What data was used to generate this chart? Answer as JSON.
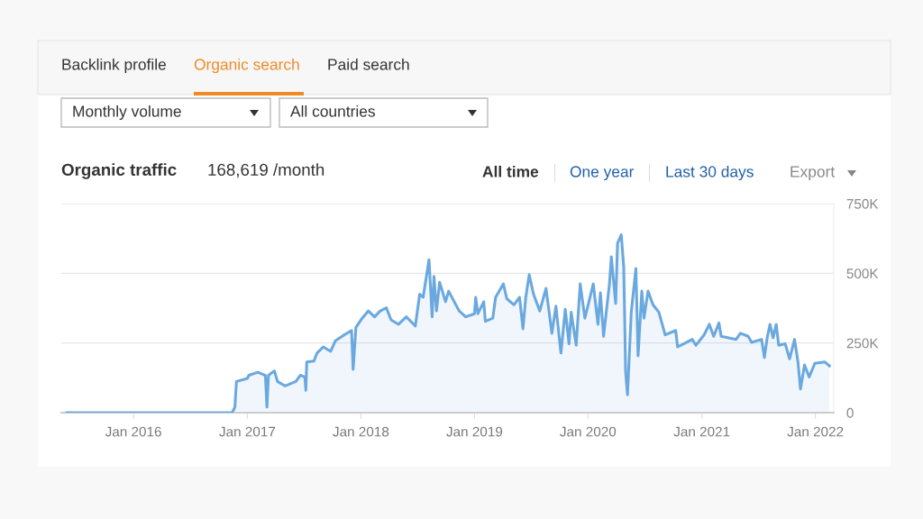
{
  "chart_data": {
    "type": "area",
    "title": "Organic traffic",
    "subtitle": "168,619 /month",
    "annotations": [
      "Backlink profile",
      "Organic search",
      "Paid search",
      "Monthly volume",
      "All countries",
      "All time",
      "One year",
      "Last 30 days",
      "Export"
    ],
    "x": [
      "2015-06-01",
      "2016-11-13",
      "2016-11-22",
      "2016-11-27",
      "2017-01-01",
      "2017-01-06",
      "2017-02-04",
      "2017-02-28",
      "2017-03-05",
      "2017-03-10",
      "2017-03-29",
      "2017-04-08",
      "2017-05-02",
      "2017-06-06",
      "2017-06-20",
      "2017-07-05",
      "2017-07-08",
      "2017-07-11",
      "2017-08-03",
      "2017-08-13",
      "2017-09-02",
      "2017-09-26",
      "2017-10-11",
      "2017-11-08",
      "2017-12-02",
      "2017-12-07",
      "2017-12-16",
      "2018-01-05",
      "2018-01-25",
      "2018-02-14",
      "2018-03-04",
      "2018-03-24",
      "2018-04-08",
      "2018-05-02",
      "2018-05-27",
      "2018-06-25",
      "2018-07-09",
      "2018-07-20",
      "2018-08-08",
      "2018-08-18",
      "2018-08-24",
      "2018-09-01",
      "2018-09-11",
      "2018-09-30",
      "2018-10-10",
      "2018-11-13",
      "2018-12-04",
      "2019-01-01",
      "2019-01-05",
      "2019-01-12",
      "2019-01-31",
      "2019-02-05",
      "2019-03-01",
      "2019-03-10",
      "2019-04-04",
      "2019-04-15",
      "2019-05-08",
      "2019-05-26",
      "2019-06-06",
      "2019-06-15",
      "2019-06-26",
      "2019-07-10",
      "2019-07-30",
      "2019-08-19",
      "2019-09-07",
      "2019-09-20",
      "2019-10-06",
      "2019-10-20",
      "2019-11-01",
      "2019-11-08",
      "2019-11-24",
      "2019-12-07",
      "2019-12-22",
      "2020-01-18",
      "2020-02-02",
      "2020-02-10",
      "2020-02-20",
      "2020-03-10",
      "2020-03-16",
      "2020-03-30",
      "2020-04-05",
      "2020-04-17",
      "2020-04-25",
      "2020-05-01",
      "2020-05-07",
      "2020-05-19",
      "2020-06-03",
      "2020-06-10",
      "2020-06-22",
      "2020-06-29",
      "2020-07-12",
      "2020-07-28",
      "2020-08-16",
      "2020-09-05",
      "2020-10-09",
      "2020-10-15",
      "2020-12-01",
      "2020-12-13",
      "2021-01-08",
      "2021-01-25",
      "2021-02-08",
      "2021-02-25",
      "2021-03-04",
      "2021-04-21",
      "2021-05-05",
      "2021-05-30",
      "2021-06-10",
      "2021-07-12",
      "2021-07-21",
      "2021-07-30",
      "2021-08-08",
      "2021-08-18",
      "2021-08-28",
      "2021-09-05",
      "2021-09-26",
      "2021-10-10",
      "2021-10-26",
      "2021-11-06",
      "2021-11-14",
      "2021-11-27",
      "2021-12-12",
      "2021-12-30",
      "2022-01-31",
      "2022-02-15"
    ],
    "series": [
      {
        "color": "#6aa8e0",
        "values": [
          0,
          0,
          20000,
          112000,
          123000,
          134000,
          145000,
          134000,
          20000,
          134000,
          150000,
          112000,
          96000,
          112000,
          134000,
          128000,
          80000,
          182000,
          185000,
          214000,
          236000,
          220000,
          258000,
          279000,
          295000,
          155000,
          306000,
          339000,
          365000,
          344000,
          365000,
          376000,
          333000,
          317000,
          344000,
          311000,
          425000,
          414000,
          549000,
          344000,
          489000,
          365000,
          468000,
          398000,
          436000,
          365000,
          344000,
          355000,
          414000,
          355000,
          398000,
          328000,
          339000,
          414000,
          462000,
          409000,
          387000,
          414000,
          301000,
          414000,
          495000,
          425000,
          365000,
          446000,
          285000,
          382000,
          214000,
          371000,
          247000,
          360000,
          242000,
          462000,
          339000,
          462000,
          317000,
          430000,
          274000,
          462000,
          559000,
          392000,
          608000,
          638000,
          522000,
          145000,
          64000,
          360000,
          517000,
          204000,
          436000,
          339000,
          436000,
          387000,
          360000,
          279000,
          295000,
          236000,
          263000,
          242000,
          279000,
          317000,
          274000,
          322000,
          274000,
          263000,
          285000,
          274000,
          252000,
          263000,
          198000,
          269000,
          317000,
          269000,
          317000,
          242000,
          247000,
          193000,
          263000,
          182000,
          85000,
          171000,
          128000,
          177000,
          182000,
          168000
        ]
      }
    ],
    "xlim": [
      "2015-05-14",
      "2022-03-01"
    ],
    "xticks": [
      {
        "value": "2016-01-01",
        "label": "Jan 2016"
      },
      {
        "value": "2017-01-01",
        "label": "Jan 2017"
      },
      {
        "value": "2018-01-01",
        "label": "Jan 2018"
      },
      {
        "value": "2019-01-01",
        "label": "Jan 2019"
      },
      {
        "value": "2020-01-01",
        "label": "Jan 2020"
      },
      {
        "value": "2021-01-01",
        "label": "Jan 2021"
      },
      {
        "value": "2022-01-01",
        "label": "Jan 2022"
      }
    ],
    "ylim": [
      0,
      750000
    ],
    "yticks": [
      0,
      {
        "value": 250000,
        "label": "250K"
      },
      {
        "value": 500000,
        "label": "500K"
      },
      {
        "value": 750000,
        "label": "750K"
      }
    ],
    "grid": "y",
    "legend": false
  }
}
